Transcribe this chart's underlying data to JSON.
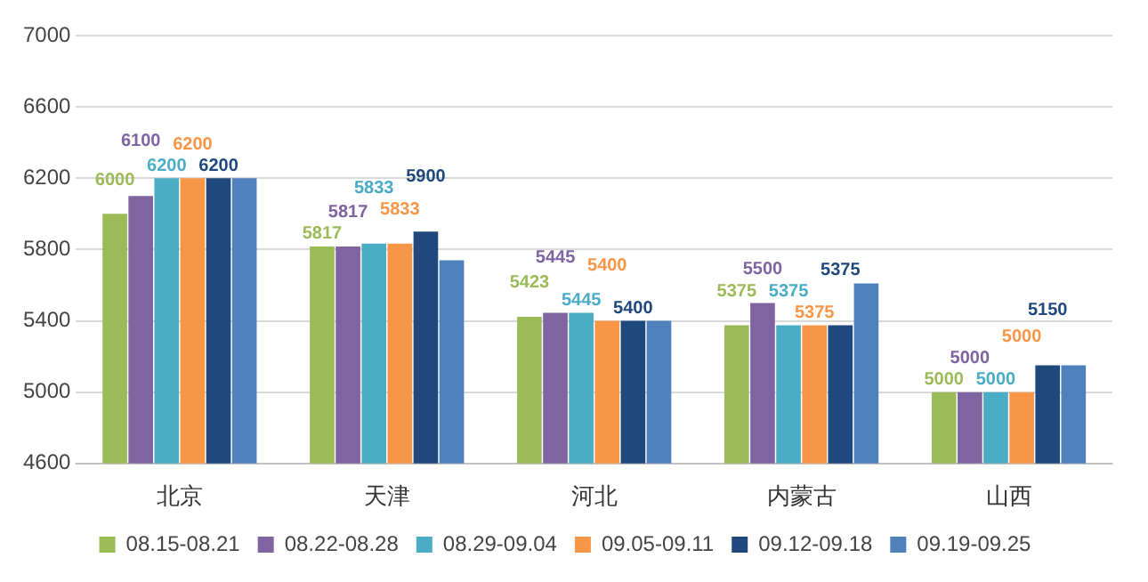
{
  "chart_data": {
    "type": "bar",
    "categories": [
      "北京",
      "天津",
      "河北",
      "内蒙古",
      "山西"
    ],
    "series": [
      {
        "name": "08.15-08.21",
        "color": "#9bbb59",
        "values": [
          6000,
          5817,
          5423,
          5375,
          5000
        ],
        "value_labels": [
          "6000",
          "5817",
          "5423",
          "5375",
          "5000"
        ]
      },
      {
        "name": "08.22-08.28",
        "color": "#8064a2",
        "values": [
          6100,
          5817,
          5445,
          5500,
          5000
        ],
        "value_labels": [
          "6100",
          "5817",
          "5445",
          "5500",
          "5000"
        ]
      },
      {
        "name": "08.29-09.04",
        "color": "#4bacc6",
        "values": [
          6200,
          5833,
          5445,
          5375,
          5000
        ],
        "value_labels": [
          "6200",
          "5833",
          "5445",
          "5375",
          "5000"
        ]
      },
      {
        "name": "09.05-09.11",
        "color": "#f79646",
        "values": [
          6200,
          5833,
          5400,
          5375,
          5000
        ],
        "value_labels": [
          "6200",
          "5833",
          "5400",
          "5375",
          "5000"
        ]
      },
      {
        "name": "09.12-09.18",
        "color": "#1f497d",
        "values": [
          6200,
          5900,
          5400,
          5375,
          5150
        ],
        "value_labels": [
          "6200",
          "5900",
          "5400",
          "5375",
          "5150"
        ]
      },
      {
        "name": "09.19-09.25",
        "color": "#4f81bd",
        "values": [
          6200,
          5740,
          5400,
          5610,
          5150
        ],
        "value_labels": [
          null,
          null,
          null,
          null,
          null
        ]
      }
    ],
    "ylim": [
      4600,
      7000
    ],
    "yticks": [
      4600,
      5000,
      5400,
      5800,
      6200,
      6600,
      7000
    ],
    "grid": "y",
    "legend": "bottom"
  }
}
